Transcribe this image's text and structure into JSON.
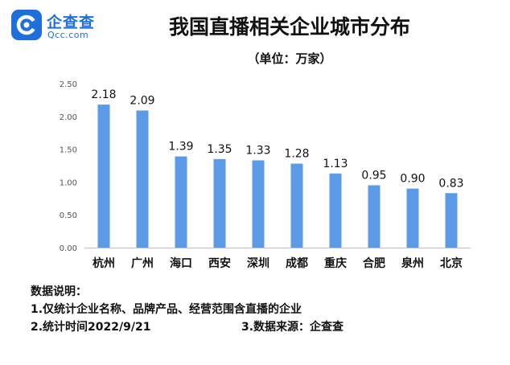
{
  "brand": {
    "name_cn": "企查查",
    "name_en": "Qcc.com",
    "icon": "qcc-logo-icon",
    "color": "#1e6fd9"
  },
  "chart_data": {
    "type": "bar",
    "title": "我国直播相关企业城市分布",
    "subtitle": "（单位：万家）",
    "categories": [
      "杭州",
      "广州",
      "海口",
      "西安",
      "深圳",
      "成都",
      "重庆",
      "合肥",
      "泉州",
      "北京"
    ],
    "values": [
      2.18,
      2.09,
      1.39,
      1.35,
      1.33,
      1.28,
      1.13,
      0.95,
      0.9,
      0.83
    ],
    "value_labels": [
      "2.18",
      "2.09",
      "1.39",
      "1.35",
      "1.33",
      "1.28",
      "1.13",
      "0.95",
      "0.90",
      "0.83"
    ],
    "ylim": [
      0,
      2.5
    ],
    "yticks": [
      "0.00",
      "0.50",
      "1.00",
      "1.50",
      "2.00",
      "2.50"
    ],
    "xlabel": "",
    "ylabel": "",
    "grid": false,
    "bar_color": "#5b9be6"
  },
  "notes": {
    "heading": "数据说明：",
    "line1": "1.仅统计企业名称、品牌产品、经营范围含直播的企业",
    "line2_left": "2.统计时间2022/9/21",
    "line2_right": "3.数据来源：企查查"
  }
}
